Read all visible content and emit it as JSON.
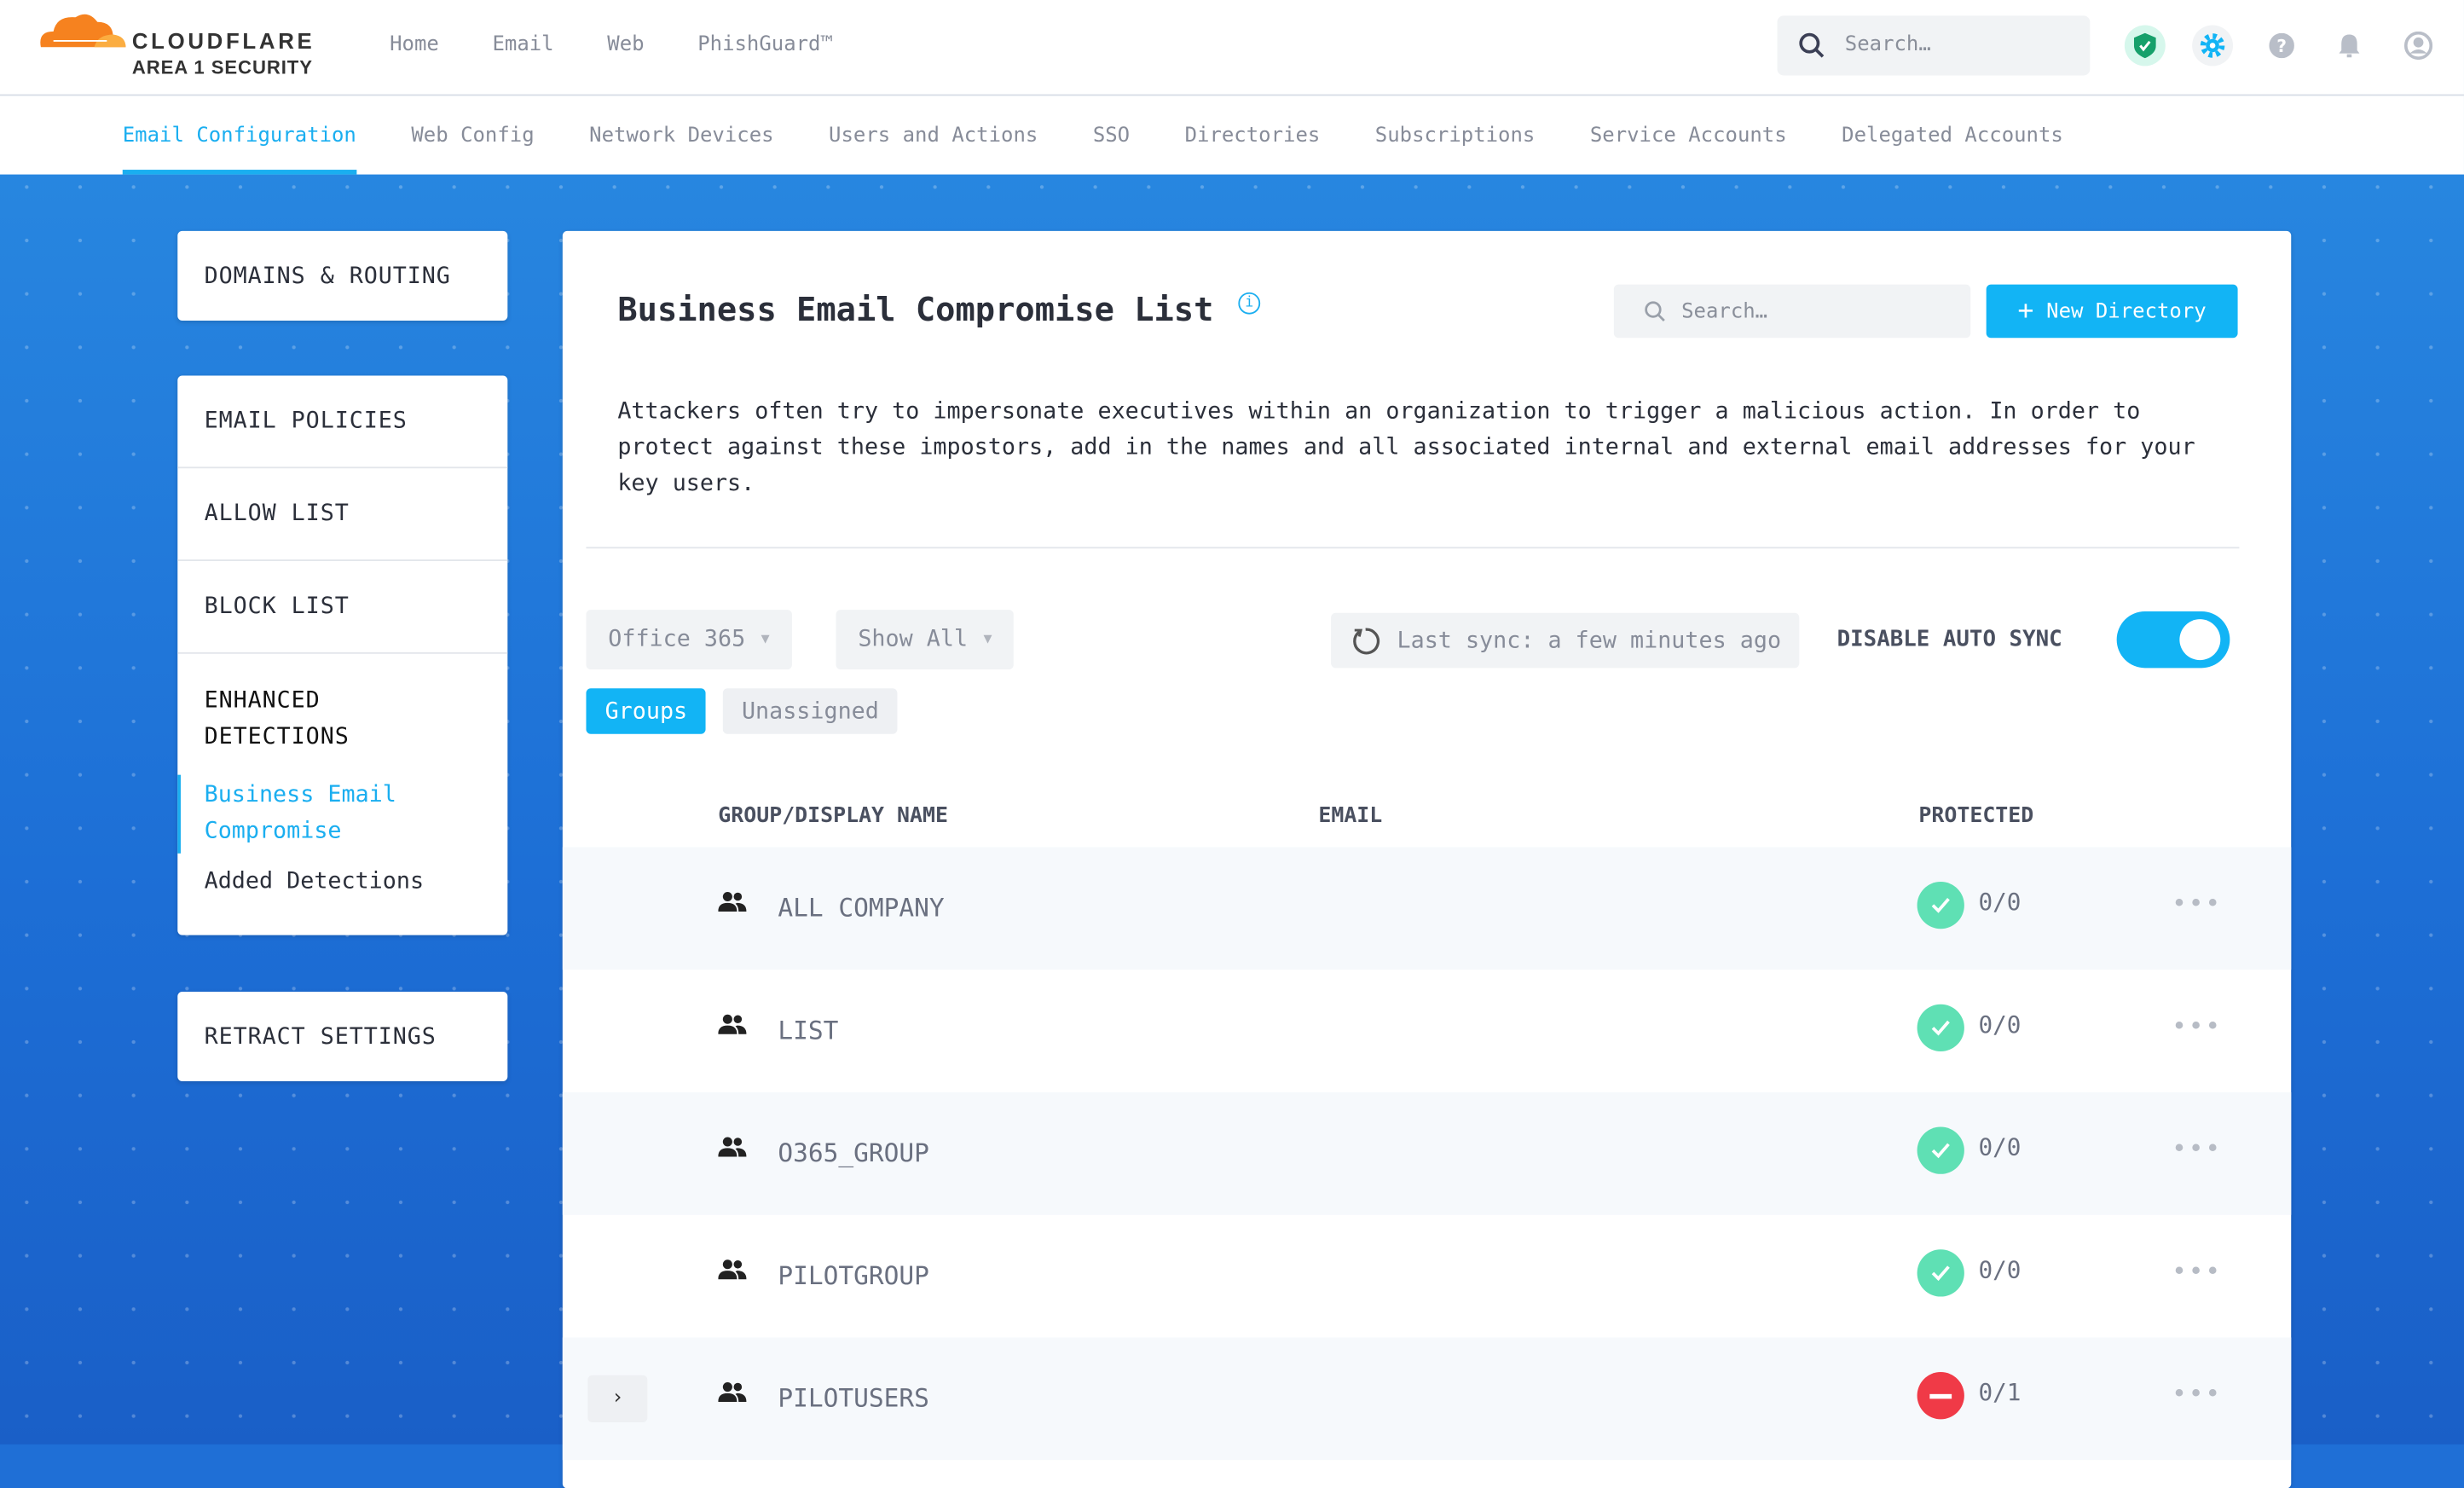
{
  "brand": {
    "name": "CLOUDFLARE",
    "subtitle": "AREA 1 SECURITY"
  },
  "topnav": [
    "Home",
    "Email",
    "Web",
    "PhishGuard™"
  ],
  "search": {
    "placeholder": "Search…"
  },
  "header_icons": [
    "shield-check-icon",
    "gear-icon",
    "help-icon",
    "bell-icon",
    "user-icon"
  ],
  "subnav": {
    "active": 0,
    "items": [
      "Email Configuration",
      "Web Config",
      "Network Devices",
      "Users and Actions",
      "SSO",
      "Directories",
      "Subscriptions",
      "Service Accounts",
      "Delegated Accounts"
    ]
  },
  "sidebar": {
    "domains": "DOMAINS & ROUTING",
    "email_policies": "EMAIL POLICIES",
    "allow": "ALLOW LIST",
    "block": "BLOCK LIST",
    "enhanced": "ENHANCED DETECTIONS",
    "bec": "Business Email Compromise",
    "added": "Added Detections",
    "retract": "RETRACT SETTINGS"
  },
  "main": {
    "title": "Business Email Compromise List",
    "search_placeholder": "Search…",
    "new_button": "New Directory",
    "description": "Attackers often try to impersonate executives within an organization to trigger a malicious action. In order to protect against these impostors, add in the names and all associated internal and external email addresses for your key users.",
    "source_select": "Office 365",
    "filter_select": "Show All",
    "last_sync": "Last sync: a few minutes ago",
    "auto_sync_label": "DISABLE AUTO SYNC",
    "auto_sync_on": true,
    "segments": [
      "Groups",
      "Unassigned"
    ],
    "columns": [
      "GROUP/DISPLAY NAME",
      "EMAIL",
      "PROTECTED"
    ],
    "rows": [
      {
        "name": "ALL COMPANY",
        "protected": "0/0",
        "status": "ok"
      },
      {
        "name": "LIST",
        "protected": "0/0",
        "status": "ok"
      },
      {
        "name": "O365_GROUP",
        "protected": "0/0",
        "status": "ok"
      },
      {
        "name": "PILOTGROUP",
        "protected": "0/0",
        "status": "ok"
      },
      {
        "name": "PILOTUSERS",
        "protected": "0/1",
        "status": "error"
      }
    ]
  },
  "colors": {
    "accent": "#12b4f5",
    "ok": "#5fe0b4",
    "error": "#f03a47",
    "brand_orange": "#f6821f"
  }
}
